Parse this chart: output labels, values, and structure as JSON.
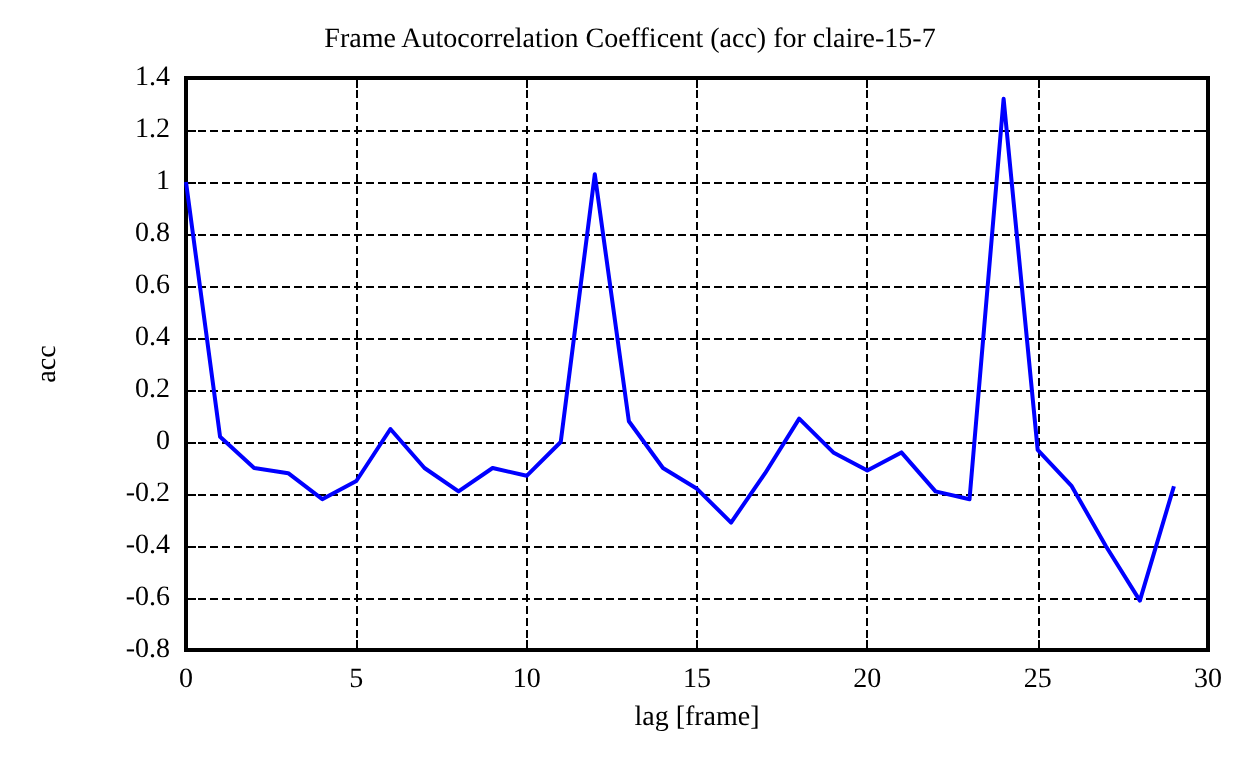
{
  "chart_data": {
    "type": "line",
    "title": "Frame Autocorrelation Coefficent (acc) for claire-15-7",
    "xlabel": "lag [frame]",
    "ylabel": "acc",
    "x": [
      0,
      1,
      2,
      3,
      4,
      5,
      6,
      7,
      8,
      9,
      10,
      11,
      12,
      13,
      14,
      15,
      16,
      17,
      18,
      19,
      20,
      21,
      22,
      23,
      24,
      25,
      26,
      27,
      28,
      29
    ],
    "series": [
      {
        "color": "#0000ff",
        "values": [
          1.0,
          0.02,
          -0.1,
          -0.12,
          -0.22,
          -0.15,
          0.05,
          -0.1,
          -0.19,
          -0.1,
          -0.13,
          0.0,
          1.03,
          0.08,
          -0.1,
          -0.18,
          -0.31,
          -0.12,
          0.09,
          -0.04,
          -0.11,
          -0.04,
          -0.19,
          -0.22,
          1.32,
          -0.03,
          -0.17,
          -0.4,
          -0.61,
          -0.17
        ]
      }
    ],
    "xlim": [
      0,
      30
    ],
    "xticks": [
      0,
      5,
      10,
      15,
      20,
      25,
      30
    ],
    "ylim": [
      -0.8,
      1.4
    ],
    "yticks": [
      -0.8,
      -0.6,
      -0.4,
      -0.2,
      0,
      0.2,
      0.4,
      0.6,
      0.8,
      1,
      1.2,
      1.4
    ],
    "grid": true,
    "marker": "none",
    "line_style": "solid"
  }
}
